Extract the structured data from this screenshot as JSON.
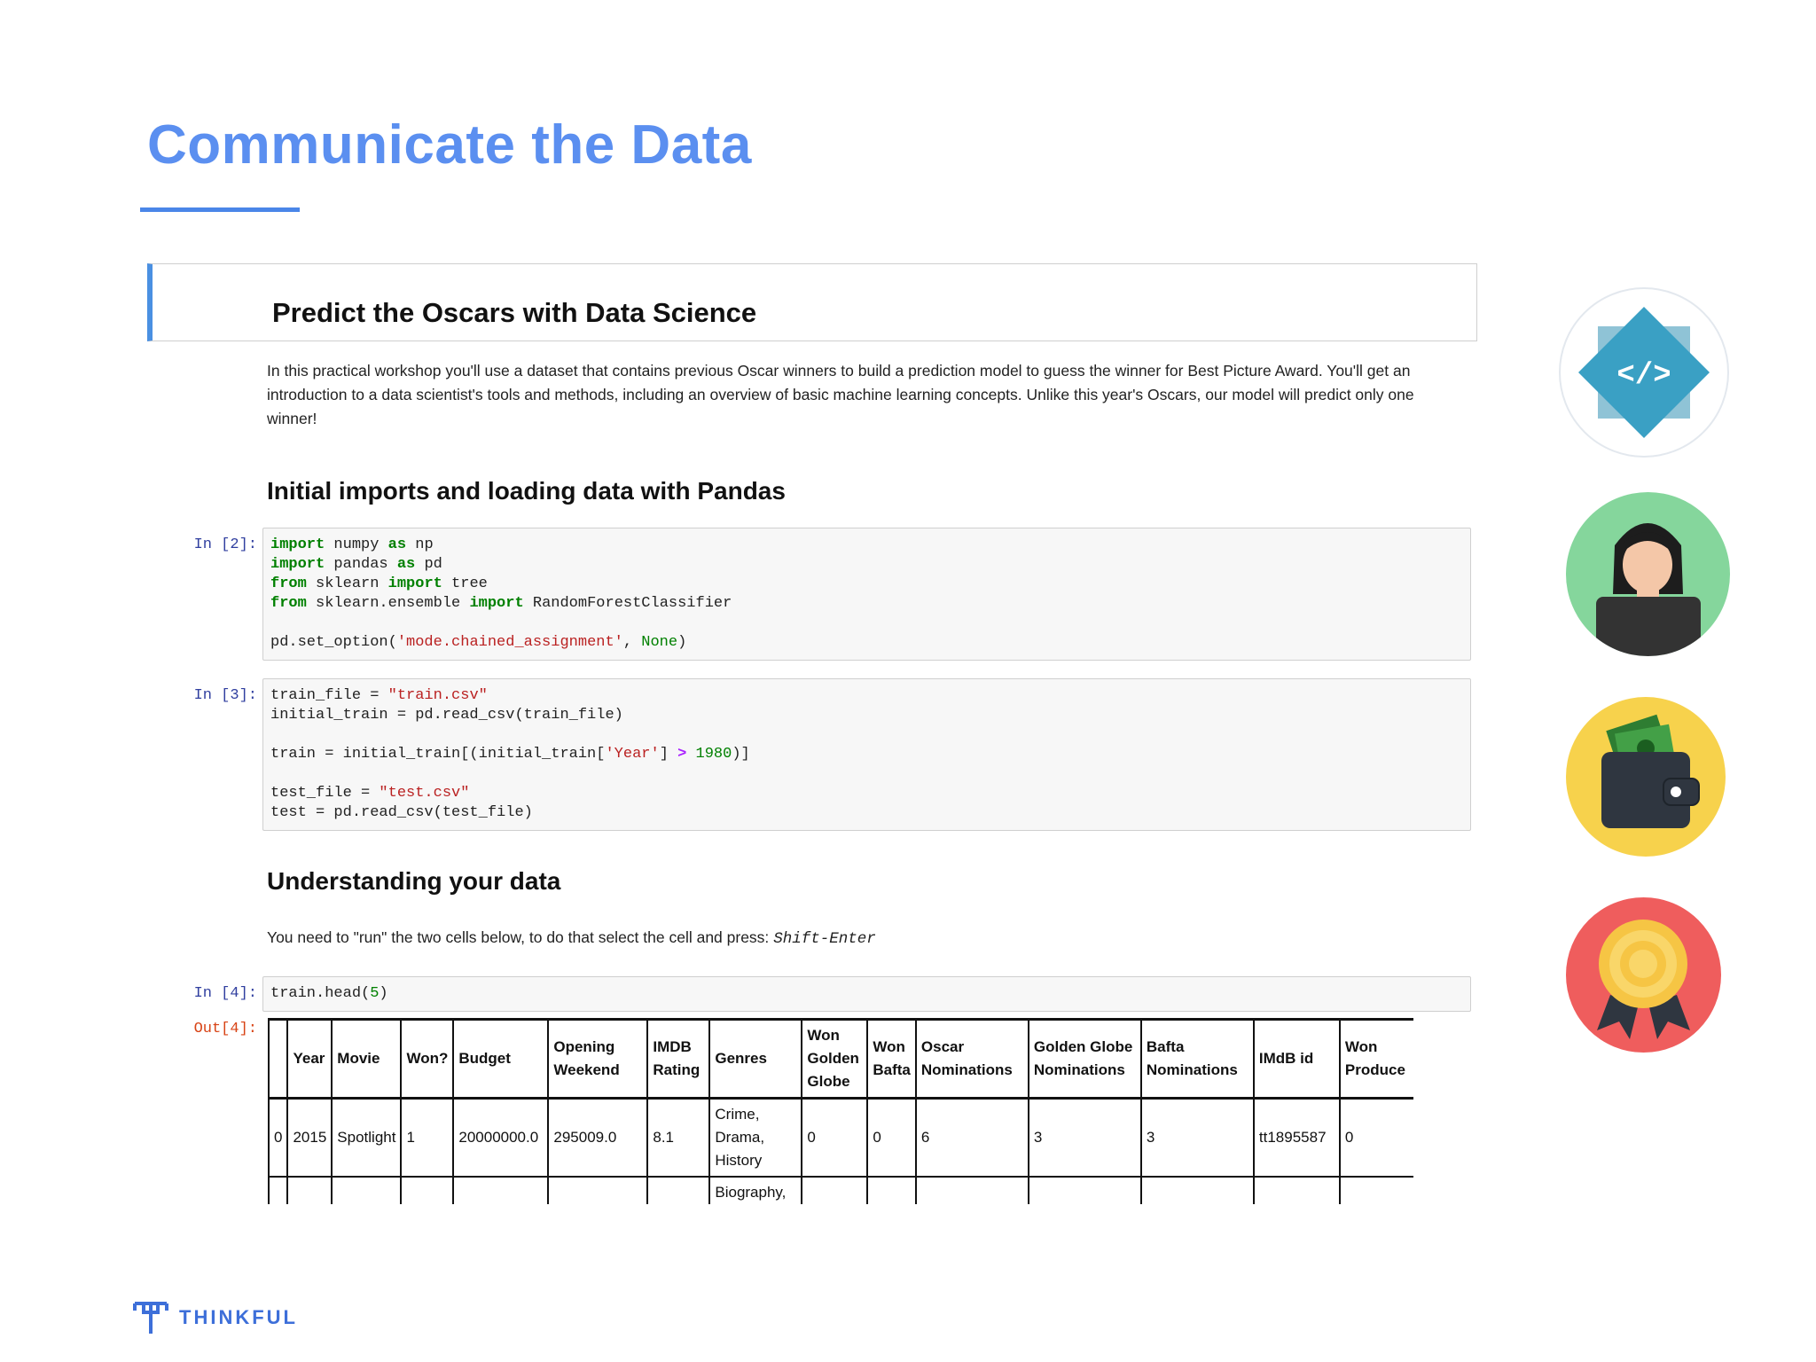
{
  "slide": {
    "title": "Communicate the Data",
    "accent_color": "#4a86e8"
  },
  "notebook": {
    "heading": "Predict the Oscars with Data Science",
    "intro": "In this practical workshop you'll use a dataset that contains previous Oscar winners to build a prediction model to guess the winner for Best Picture Award. You'll get an introduction to a data scientist's tools and methods, including an overview of basic machine learning concepts. Unlike this year's Oscars, our model will predict only one winner!",
    "section_imports": "Initial imports and loading data with Pandas",
    "section_understanding": "Understanding your data",
    "run_instruction": "You need to \"run\" the two cells below, to do that select the cell and press:",
    "run_shortcut": "Shift-Enter",
    "cells": [
      {
        "prompt": "In [2]:",
        "lines": [
          "import numpy as np",
          "import pandas as pd",
          "from sklearn import tree",
          "from sklearn.ensemble import RandomForestClassifier",
          "",
          "pd.set_option('mode.chained_assignment', None)"
        ]
      },
      {
        "prompt": "In [3]:",
        "lines": [
          "train_file = \"train.csv\"",
          "initial_train = pd.read_csv(train_file)",
          "",
          "train = initial_train[(initial_train['Year'] > 1980)]",
          "",
          "test_file = \"test.csv\"",
          "test = pd.read_csv(test_file)"
        ]
      },
      {
        "prompt": "In [4]:",
        "lines": [
          "train.head(5)"
        ]
      }
    ],
    "output_prompt": "Out[4]:",
    "table": {
      "columns": [
        "",
        "Year",
        "Movie",
        "Won?",
        "Budget",
        "Opening Weekend",
        "IMDB Rating",
        "Genres",
        "Won Golden Globe",
        "Won Bafta",
        "Oscar Nominations",
        "Golden Globe Nominations",
        "Bafta Nominations",
        "IMdB id",
        "Won Produce"
      ],
      "rows": [
        [
          "0",
          "2015",
          "Spotlight",
          "1",
          "20000000.0",
          "295009.0",
          "8.1",
          "Crime, Drama, History",
          "0",
          "0",
          "6",
          "3",
          "3",
          "tt1895587",
          "0"
        ],
        [
          "",
          "",
          "",
          "",
          "",
          "",
          "",
          "Biography,",
          "",
          "",
          "",
          "",
          "",
          "",
          ""
        ]
      ]
    }
  },
  "icons": [
    "code-icon",
    "person-laptop-icon",
    "wallet-icon",
    "award-badge-icon"
  ],
  "brand": {
    "name": "THINKFUL",
    "color": "#3d6fd9"
  }
}
